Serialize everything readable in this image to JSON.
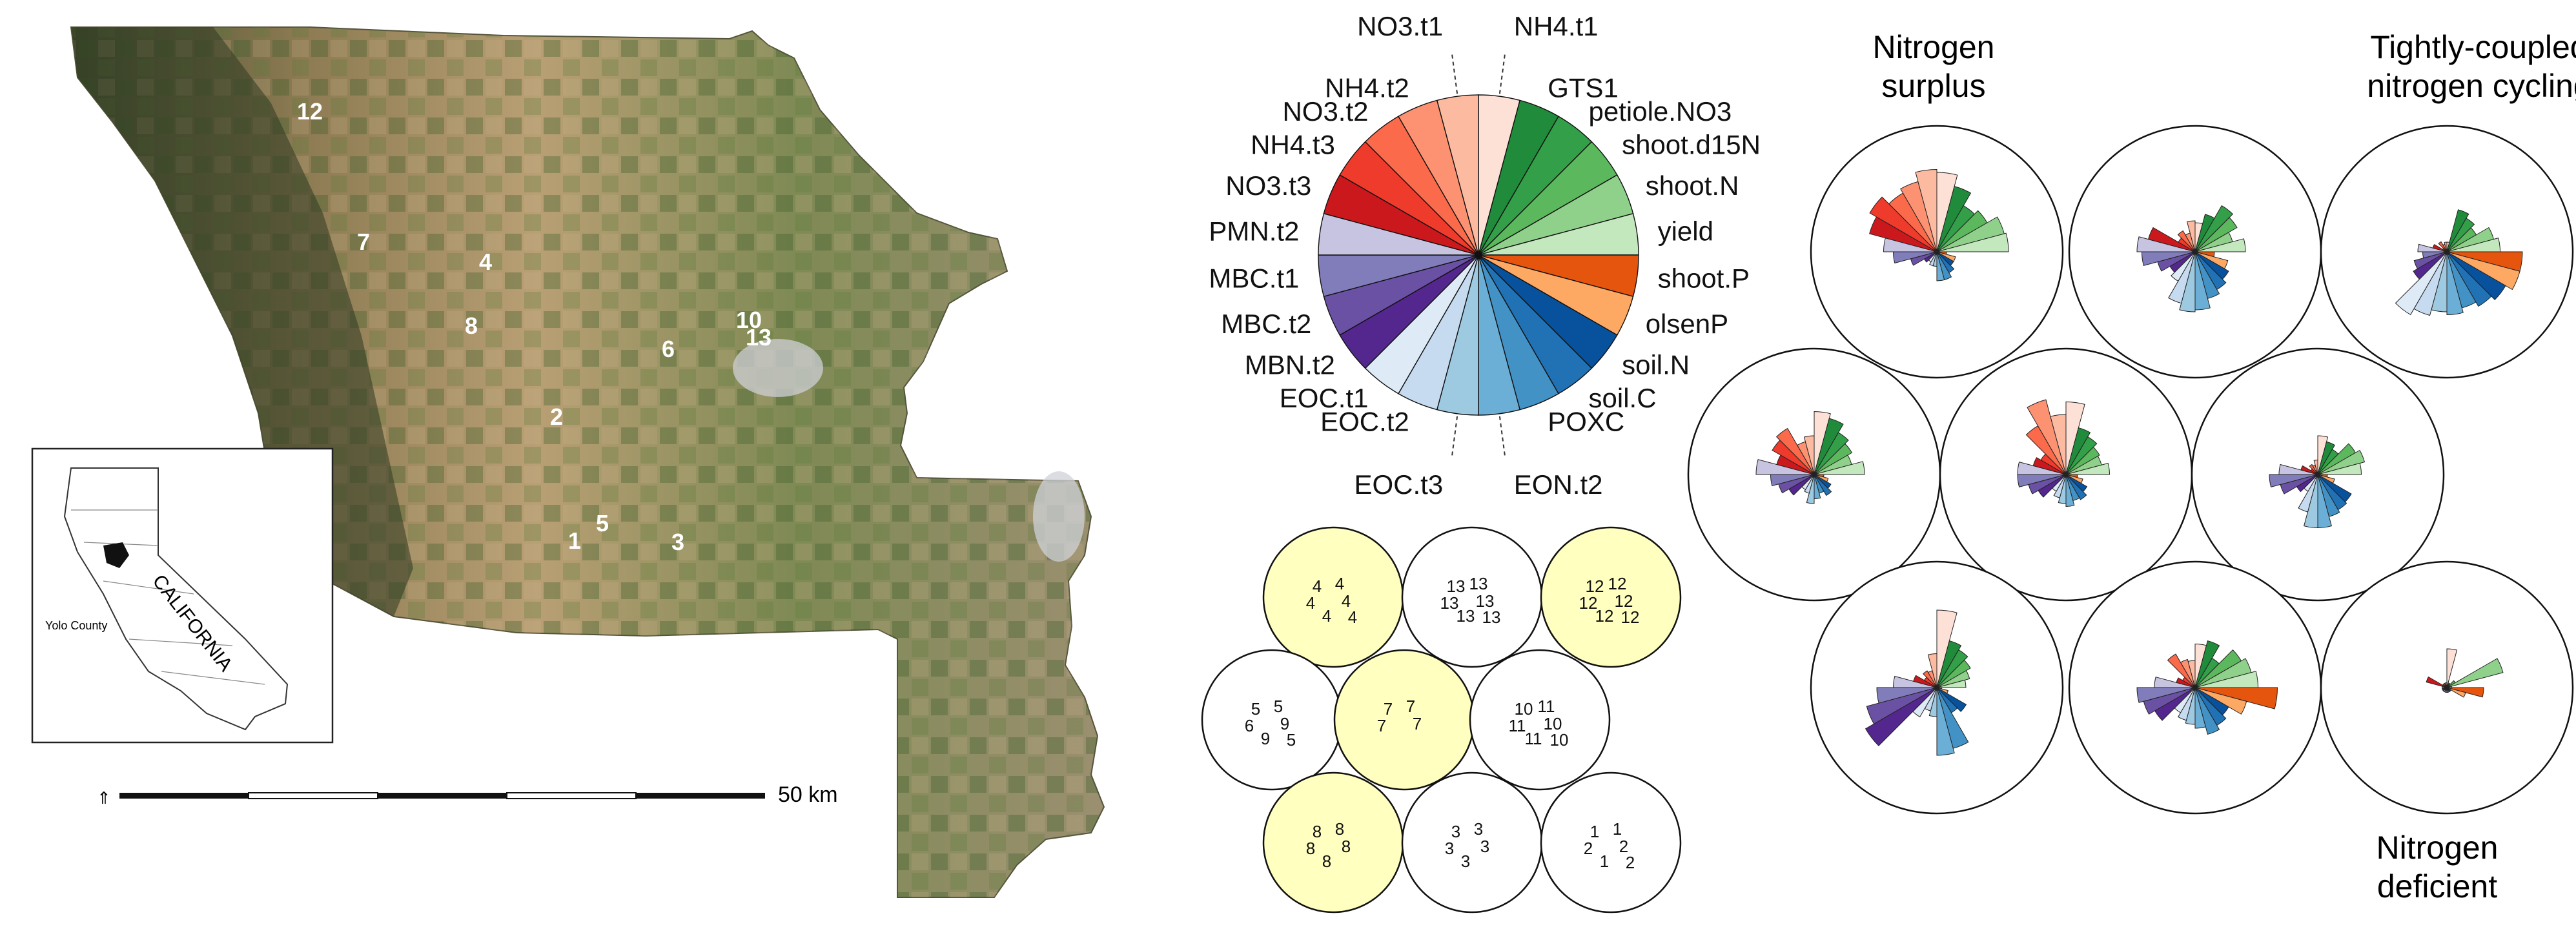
{
  "map": {
    "county_label": "Yolo County",
    "state_label": "CALIFORNIA",
    "scale_label": "50 km",
    "site_labels": [
      "12",
      "7",
      "4",
      "8",
      "10",
      "13",
      "6",
      "2",
      "1",
      "5",
      "3"
    ]
  },
  "legend_wheel": {
    "variables": [
      {
        "name": "NH4.t1",
        "color": "#fde0d6"
      },
      {
        "name": "GTS1",
        "color": "#1f8b3b"
      },
      {
        "name": "petiole.NO3",
        "color": "#339f49"
      },
      {
        "name": "shoot.d15N",
        "color": "#5cb85c"
      },
      {
        "name": "shoot.N",
        "color": "#8fd18b"
      },
      {
        "name": "yield",
        "color": "#c4e8bd"
      },
      {
        "name": "shoot.P",
        "color": "#e6550d"
      },
      {
        "name": "olsenP",
        "color": "#fda863"
      },
      {
        "name": "soil.N",
        "color": "#08519c"
      },
      {
        "name": "soil.C",
        "color": "#2171b5"
      },
      {
        "name": "POXC",
        "color": "#4292c6"
      },
      {
        "name": "EON.t2",
        "color": "#6baed6"
      },
      {
        "name": "EOC.t3",
        "color": "#9ecae1"
      },
      {
        "name": "EOC.t2",
        "color": "#c6dbef"
      },
      {
        "name": "EOC.t1",
        "color": "#deebf7"
      },
      {
        "name": "MBN.t2",
        "color": "#54278f"
      },
      {
        "name": "MBC.t2",
        "color": "#6a51a3"
      },
      {
        "name": "MBC.t1",
        "color": "#807dba"
      },
      {
        "name": "PMN.t2",
        "color": "#c7c4e2"
      },
      {
        "name": "NO3.t3",
        "color": "#cb181d"
      },
      {
        "name": "NH4.t3",
        "color": "#ef3b2c"
      },
      {
        "name": "NO3.t2",
        "color": "#fb6a4a"
      },
      {
        "name": "NH4.t2",
        "color": "#fc9272"
      },
      {
        "name": "NO3.t1",
        "color": "#fcbba1"
      }
    ]
  },
  "site_grid": [
    {
      "highlight": true,
      "labels": [
        "4",
        "4",
        "4",
        "4",
        "4",
        "4"
      ]
    },
    {
      "highlight": false,
      "labels": [
        "13",
        "13",
        "13",
        "13",
        "13",
        "13"
      ]
    },
    {
      "highlight": true,
      "labels": [
        "12",
        "12",
        "12",
        "12",
        "12",
        "12"
      ]
    },
    {
      "highlight": false,
      "labels": [
        "5",
        "5",
        "6",
        "9",
        "9",
        "5"
      ]
    },
    {
      "highlight": true,
      "labels": [
        "7",
        "7",
        "7",
        "7"
      ]
    },
    {
      "highlight": false,
      "labels": [
        "10",
        "11",
        "11",
        "10",
        "11",
        "10"
      ]
    },
    {
      "highlight": true,
      "labels": [
        "8",
        "8",
        "8",
        "8",
        "8"
      ]
    },
    {
      "highlight": false,
      "labels": [
        "3",
        "3",
        "3",
        "3",
        "3"
      ]
    },
    {
      "highlight": false,
      "labels": [
        "1",
        "1",
        "2",
        "2",
        "1",
        "2"
      ]
    }
  ],
  "cluster_labels": {
    "surplus": "Nitrogen surplus",
    "tight": "Tightly-coupled nitrogen cycling",
    "deficient": "Nitrogen deficient"
  },
  "cluster_profiles": [
    {
      "values": [
        0.82,
        0.7,
        0.55,
        0.6,
        0.72,
        0.74,
        0.1,
        0.2,
        0.2,
        0.25,
        0.3,
        0.3,
        0.15,
        0.15,
        0.12,
        0.15,
        0.28,
        0.45,
        0.55,
        0.72,
        0.8,
        0.7,
        0.75,
        0.85
      ]
    },
    {
      "values": [
        0.3,
        0.4,
        0.55,
        0.5,
        0.4,
        0.52,
        0.2,
        0.35,
        0.4,
        0.45,
        0.5,
        0.6,
        0.62,
        0.55,
        0.35,
        0.3,
        0.4,
        0.55,
        0.6,
        0.5,
        0.2,
        0.25,
        0.2,
        0.32
      ]
    },
    {
      "values": [
        0.1,
        0.45,
        0.4,
        0.35,
        0.5,
        0.55,
        0.78,
        0.78,
        0.7,
        0.65,
        0.6,
        0.65,
        0.62,
        0.68,
        0.75,
        0.4,
        0.35,
        0.25,
        0.3,
        0.15,
        0.05,
        0.12,
        0.08,
        0.1
      ]
    },
    {
      "values": [
        0.65,
        0.6,
        0.5,
        0.45,
        0.4,
        0.52,
        0.1,
        0.15,
        0.2,
        0.25,
        0.2,
        0.25,
        0.3,
        0.2,
        0.18,
        0.3,
        0.38,
        0.45,
        0.6,
        0.4,
        0.5,
        0.55,
        0.35,
        0.4
      ]
    },
    {
      "values": [
        0.75,
        0.5,
        0.45,
        0.4,
        0.38,
        0.45,
        0.12,
        0.18,
        0.25,
        0.3,
        0.28,
        0.33,
        0.3,
        0.25,
        0.2,
        0.33,
        0.4,
        0.5,
        0.5,
        0.35,
        0.3,
        0.58,
        0.8,
        0.62
      ]
    },
    {
      "values": [
        0.4,
        0.35,
        0.3,
        0.45,
        0.5,
        0.45,
        0.1,
        0.18,
        0.4,
        0.42,
        0.45,
        0.55,
        0.55,
        0.4,
        0.2,
        0.25,
        0.4,
        0.5,
        0.4,
        0.18,
        0.08,
        0.12,
        0.1,
        0.15
      ]
    },
    {
      "values": [
        0.8,
        0.5,
        0.45,
        0.4,
        0.35,
        0.3,
        0.05,
        0.12,
        0.35,
        0.3,
        0.65,
        0.7,
        0.3,
        0.25,
        0.35,
        0.85,
        0.75,
        0.62,
        0.45,
        0.25,
        0.15,
        0.2,
        0.18,
        0.35
      ]
    },
    {
      "values": [
        0.45,
        0.5,
        0.35,
        0.55,
        0.6,
        0.65,
        0.85,
        0.55,
        0.4,
        0.45,
        0.5,
        0.42,
        0.38,
        0.35,
        0.3,
        0.48,
        0.55,
        0.6,
        0.42,
        0.2,
        0.15,
        0.4,
        0.3,
        0.28
      ]
    },
    {
      "values": [
        0.4,
        0.05,
        0.05,
        0.1,
        0.6,
        0.05,
        0.38,
        0.2,
        0.05,
        0.05,
        0.05,
        0.05,
        0.05,
        0.05,
        0.05,
        0.05,
        0.05,
        0.05,
        0.05,
        0.22,
        0.05,
        0.05,
        0.05,
        0.05
      ]
    }
  ]
}
